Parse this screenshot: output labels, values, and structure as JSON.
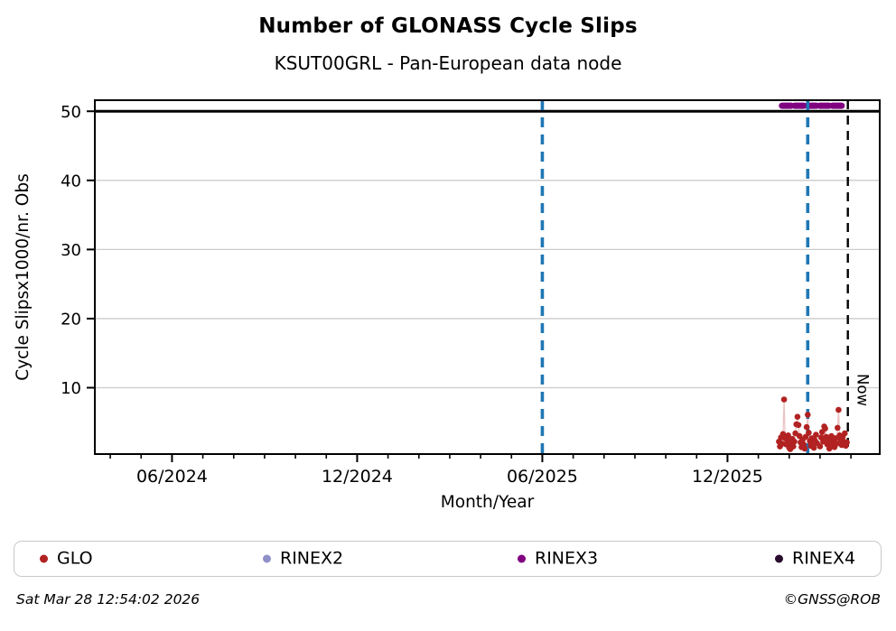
{
  "header": {
    "title": "Number of GLONASS Cycle Slips",
    "subtitle": "KSUT00GRL - Pan-European data node"
  },
  "footer": {
    "timestamp": "Sat Mar 28 12:54:02 2026",
    "credit": "©GNSS@ROB"
  },
  "legend": {
    "items": [
      {
        "label": "GLO",
        "color": "#b22222"
      },
      {
        "label": "RINEX2",
        "color": "#9090c8"
      },
      {
        "label": "RINEX3",
        "color": "#800080"
      },
      {
        "label": "RINEX4",
        "color": "#2a0c2e"
      }
    ]
  },
  "chart_data": {
    "type": "scatter",
    "title": "Number of GLONASS Cycle Slips",
    "subtitle": "KSUT00GRL - Pan-European data node",
    "xlabel": "Month/Year",
    "ylabel": "Cycle Slipsx1000/nr. Obs",
    "x_domain": [
      "2024-03-16",
      "2026-04-29"
    ],
    "ylim": [
      0.4,
      51.6
    ],
    "yticks": [
      10,
      20,
      30,
      40,
      50
    ],
    "xticks_major": [
      {
        "date": "2024-06-01",
        "label": "06/2024"
      },
      {
        "date": "2024-12-01",
        "label": "12/2024"
      },
      {
        "date": "2025-06-01",
        "label": "06/2025"
      },
      {
        "date": "2025-12-01",
        "label": "12/2025"
      }
    ],
    "xticks_minor_monthly": true,
    "grid": "horizontal",
    "grid_color": "#cccccc",
    "hline_solid": {
      "y": 50,
      "color": "#000000"
    },
    "vlines": [
      {
        "date": "2025-06-01",
        "color": "#1f77b4",
        "style": "dashed",
        "name": "event-line-1",
        "label": ""
      },
      {
        "date": "2026-02-19",
        "color": "#1f77b4",
        "style": "dashed",
        "name": "event-line-2",
        "label": ""
      },
      {
        "date": "2026-03-28",
        "color": "#000000",
        "style": "dashed",
        "name": "now-line",
        "label": "Now"
      }
    ],
    "rinex3_segment": {
      "start": "2026-01-24",
      "end": "2026-03-25",
      "y": 50.8,
      "color": "#800080"
    },
    "series": [
      {
        "name": "GLO",
        "color": "#b22222",
        "line_color": "rgba(178,34,34,0.28)",
        "points": [
          [
            "2026-01-21",
            2.2
          ],
          [
            "2026-01-22",
            1.5
          ],
          [
            "2026-01-23",
            2.8
          ],
          [
            "2026-01-24",
            1.9
          ],
          [
            "2026-01-25",
            3.3
          ],
          [
            "2026-01-26",
            8.3
          ],
          [
            "2026-01-27",
            2.7
          ],
          [
            "2026-01-28",
            1.8
          ],
          [
            "2026-01-29",
            2.4
          ],
          [
            "2026-01-30",
            3.1
          ],
          [
            "2026-01-31",
            1.3
          ],
          [
            "2026-02-01",
            2.0
          ],
          [
            "2026-02-02",
            1.1
          ],
          [
            "2026-02-03",
            1.7
          ],
          [
            "2026-02-04",
            2.6
          ],
          [
            "2026-02-05",
            1.5
          ],
          [
            "2026-02-06",
            2.2
          ],
          [
            "2026-02-07",
            3.4
          ],
          [
            "2026-02-08",
            4.7
          ],
          [
            "2026-02-09",
            5.8
          ],
          [
            "2026-02-10",
            4.6
          ],
          [
            "2026-02-11",
            3.0
          ],
          [
            "2026-02-12",
            2.1
          ],
          [
            "2026-02-13",
            1.4
          ],
          [
            "2026-02-14",
            2.5
          ],
          [
            "2026-02-15",
            1.8
          ],
          [
            "2026-02-16",
            1.2
          ],
          [
            "2026-02-17",
            2.9
          ],
          [
            "2026-02-18",
            4.3
          ],
          [
            "2026-02-19",
            6.1
          ],
          [
            "2026-02-20",
            3.5
          ],
          [
            "2026-02-21",
            2.3
          ],
          [
            "2026-02-22",
            1.6
          ],
          [
            "2026-02-23",
            2.7
          ],
          [
            "2026-02-24",
            1.9
          ],
          [
            "2026-02-25",
            1.3
          ],
          [
            "2026-02-26",
            2.4
          ],
          [
            "2026-02-27",
            3.2
          ],
          [
            "2026-02-28",
            2.0
          ],
          [
            "2026-03-01",
            1.5
          ],
          [
            "2026-03-02",
            2.8
          ],
          [
            "2026-03-03",
            3.6
          ],
          [
            "2026-03-04",
            2.2
          ],
          [
            "2026-03-05",
            4.4
          ],
          [
            "2026-03-06",
            4.1
          ],
          [
            "2026-03-07",
            2.9
          ],
          [
            "2026-03-08",
            1.8
          ],
          [
            "2026-03-09",
            2.5
          ],
          [
            "2026-03-10",
            1.2
          ],
          [
            "2026-03-11",
            2.1
          ],
          [
            "2026-03-12",
            3.0
          ],
          [
            "2026-03-13",
            1.6
          ],
          [
            "2026-03-14",
            2.3
          ],
          [
            "2026-03-15",
            1.4
          ],
          [
            "2026-03-16",
            2.7
          ],
          [
            "2026-03-17",
            1.9
          ],
          [
            "2026-03-18",
            4.2
          ],
          [
            "2026-03-19",
            6.8
          ],
          [
            "2026-03-20",
            3.1
          ],
          [
            "2026-03-21",
            2.4
          ],
          [
            "2026-03-22",
            1.7
          ],
          [
            "2026-03-23",
            2.9
          ],
          [
            "2026-03-24",
            2.2
          ],
          [
            "2026-03-25",
            3.4
          ],
          [
            "2026-03-26",
            1.6
          ],
          [
            "2026-03-27",
            2.1
          ]
        ]
      }
    ]
  }
}
